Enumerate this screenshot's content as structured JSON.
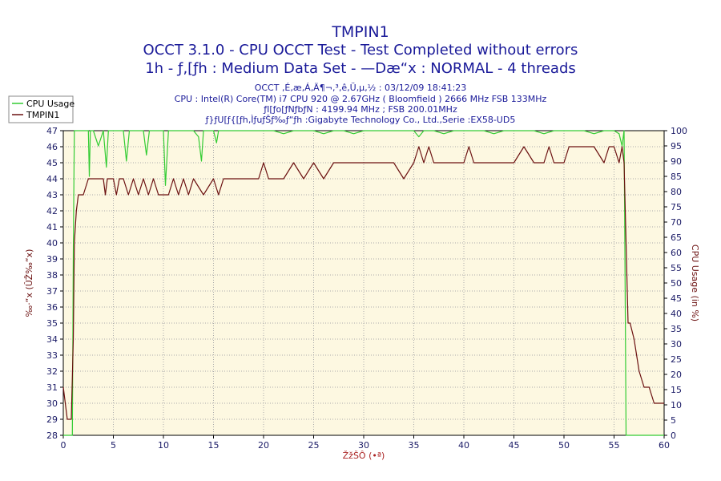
{
  "chart_data": {
    "type": "line",
    "title": "TMPIN1",
    "subtitle_1": "OCCT 3.1.0 - CPU OCCT Test - Test Completed without errors",
    "subtitle_2": "1h - ƒ‚[ƒh : Medium Data Set - —Dæ“x : NORMAL - 4 threads",
    "info_lines": [
      "OCCT ‚É‚æ‚Á‚Ä¶¬‚³‚ê‚Ü‚µ‚½ : 03/12/09 18:41:23",
      "CPU : Intel(R) Core(TM) i7 CPU 920 @ 2.67GHz ( Bloomfield ) 2666 MHz FSB 133MHz",
      "ƒI[ƒo[ƒNƒbƒN : 4199.94 MHz ; FSB 200.01MHz",
      "ƒ}ƒU[ƒ{[ƒh‚ÌƒuƒŠƒ‰ƒ“ƒh :Gigabyte Technology Co., Ltd.,Serie :EX58-UD5"
    ],
    "xlabel": "ŽžŠÔ (•ª)",
    "ylabel_left": "‰·“x (ÛŽ‰“x)",
    "ylabel_right": "CPU Usage (in %)",
    "xlim": [
      0,
      60
    ],
    "ylim_left": [
      28,
      47
    ],
    "ylim_right": [
      0,
      100
    ],
    "x_ticks": [
      0,
      5,
      10,
      15,
      20,
      25,
      30,
      35,
      40,
      45,
      50,
      55,
      60
    ],
    "y_ticks_left": [
      28,
      29,
      30,
      31,
      32,
      33,
      34,
      35,
      36,
      37,
      38,
      39,
      40,
      41,
      42,
      43,
      44,
      45,
      46,
      47
    ],
    "y_ticks_right": [
      0,
      5,
      10,
      15,
      20,
      25,
      30,
      35,
      40,
      45,
      50,
      55,
      60,
      65,
      70,
      75,
      80,
      85,
      90,
      95,
      100
    ],
    "grid": true,
    "legend_position": "top-left",
    "series": [
      {
        "name": "CPU Usage",
        "axis": "right",
        "color": "#33cc33",
        "x": [
          0,
          0.9,
          1.0,
          1.1,
          1.2,
          1.5,
          2.0,
          2.5,
          2.6,
          2.7,
          3.0,
          3.5,
          4.0,
          4.3,
          4.5,
          5.0,
          6.0,
          6.3,
          6.6,
          7.0,
          8.0,
          8.3,
          8.6,
          9.0,
          10.0,
          10.2,
          10.5,
          11.0,
          12.0,
          13.0,
          13.5,
          13.8,
          14.0,
          15.0,
          15.3,
          15.5,
          16.0,
          17.0,
          18.0,
          19.0,
          20.0,
          21.0,
          22.0,
          23.0,
          24.0,
          25.0,
          26.0,
          27.0,
          28.0,
          29.0,
          30.0,
          31.0,
          32.0,
          33.0,
          34.0,
          35.0,
          35.5,
          36.0,
          37.0,
          38.0,
          39.0,
          40.0,
          41.0,
          42.0,
          43.0,
          44.0,
          45.0,
          46.0,
          47.0,
          48.0,
          49.0,
          50.0,
          51.0,
          52.0,
          53.0,
          54.0,
          55.0,
          55.5,
          55.8,
          56.0,
          56.1,
          56.2,
          56.5,
          57.0,
          58.0,
          59.0,
          60.0
        ],
        "values": [
          0,
          0,
          60,
          100,
          100,
          100,
          100,
          100,
          85,
          100,
          100,
          95,
          100,
          88,
          100,
          100,
          100,
          90,
          100,
          100,
          100,
          92,
          100,
          100,
          100,
          82,
          100,
          100,
          100,
          100,
          98,
          90,
          100,
          100,
          96,
          100,
          100,
          100,
          100,
          100,
          100,
          100,
          99,
          100,
          100,
          100,
          99,
          100,
          100,
          99,
          100,
          100,
          100,
          100,
          100,
          100,
          98,
          100,
          100,
          99,
          100,
          100,
          100,
          100,
          99,
          100,
          100,
          100,
          100,
          99,
          100,
          100,
          100,
          100,
          99,
          100,
          100,
          99,
          95,
          100,
          50,
          0,
          0,
          0,
          0,
          0,
          0
        ]
      },
      {
        "name": "TMPIN1",
        "axis": "left",
        "color": "#6b1010",
        "x": [
          0,
          0.2,
          0.4,
          0.6,
          0.8,
          1.0,
          1.1,
          1.3,
          1.5,
          1.7,
          2.0,
          2.5,
          3.0,
          3.5,
          4.0,
          4.2,
          4.4,
          4.6,
          5.0,
          5.3,
          5.6,
          6.0,
          6.5,
          7.0,
          7.5,
          8.0,
          8.5,
          9.0,
          9.5,
          10.0,
          10.5,
          11.0,
          11.5,
          12.0,
          12.5,
          13.0,
          14.0,
          15.0,
          15.5,
          16.0,
          16.5,
          17.0,
          18.0,
          19.0,
          19.5,
          20.0,
          20.5,
          21.0,
          22.0,
          23.0,
          24.0,
          25.0,
          26.0,
          27.0,
          28.0,
          29.0,
          30.0,
          31.0,
          32.0,
          33.0,
          34.0,
          35.0,
          35.5,
          36.0,
          36.5,
          37.0,
          38.0,
          39.0,
          40.0,
          40.5,
          41.0,
          42.0,
          43.0,
          44.0,
          45.0,
          46.0,
          47.0,
          48.0,
          48.5,
          49.0,
          50.0,
          50.5,
          51.0,
          52.0,
          53.0,
          54.0,
          54.5,
          55.0,
          55.5,
          55.8,
          56.0,
          56.2,
          56.4,
          56.6,
          57.0,
          57.5,
          58.0,
          58.5,
          59.0,
          59.5,
          60.0
        ],
        "values": [
          31,
          30,
          29,
          29,
          29,
          34,
          40,
          42,
          43,
          43,
          43,
          44,
          44,
          44,
          44,
          43,
          44,
          44,
          44,
          43,
          44,
          44,
          43,
          44,
          43,
          44,
          43,
          44,
          43,
          43,
          43,
          44,
          43,
          44,
          43,
          44,
          43,
          44,
          43,
          44,
          44,
          44,
          44,
          44,
          44,
          45,
          44,
          44,
          44,
          45,
          44,
          45,
          44,
          45,
          45,
          45,
          45,
          45,
          45,
          45,
          44,
          45,
          46,
          45,
          46,
          45,
          45,
          45,
          45,
          46,
          45,
          45,
          45,
          45,
          45,
          46,
          45,
          45,
          46,
          45,
          45,
          46,
          46,
          46,
          46,
          45,
          46,
          46,
          45,
          46,
          45,
          40,
          35,
          35,
          34,
          32,
          31,
          31,
          30,
          30,
          30
        ]
      }
    ]
  }
}
